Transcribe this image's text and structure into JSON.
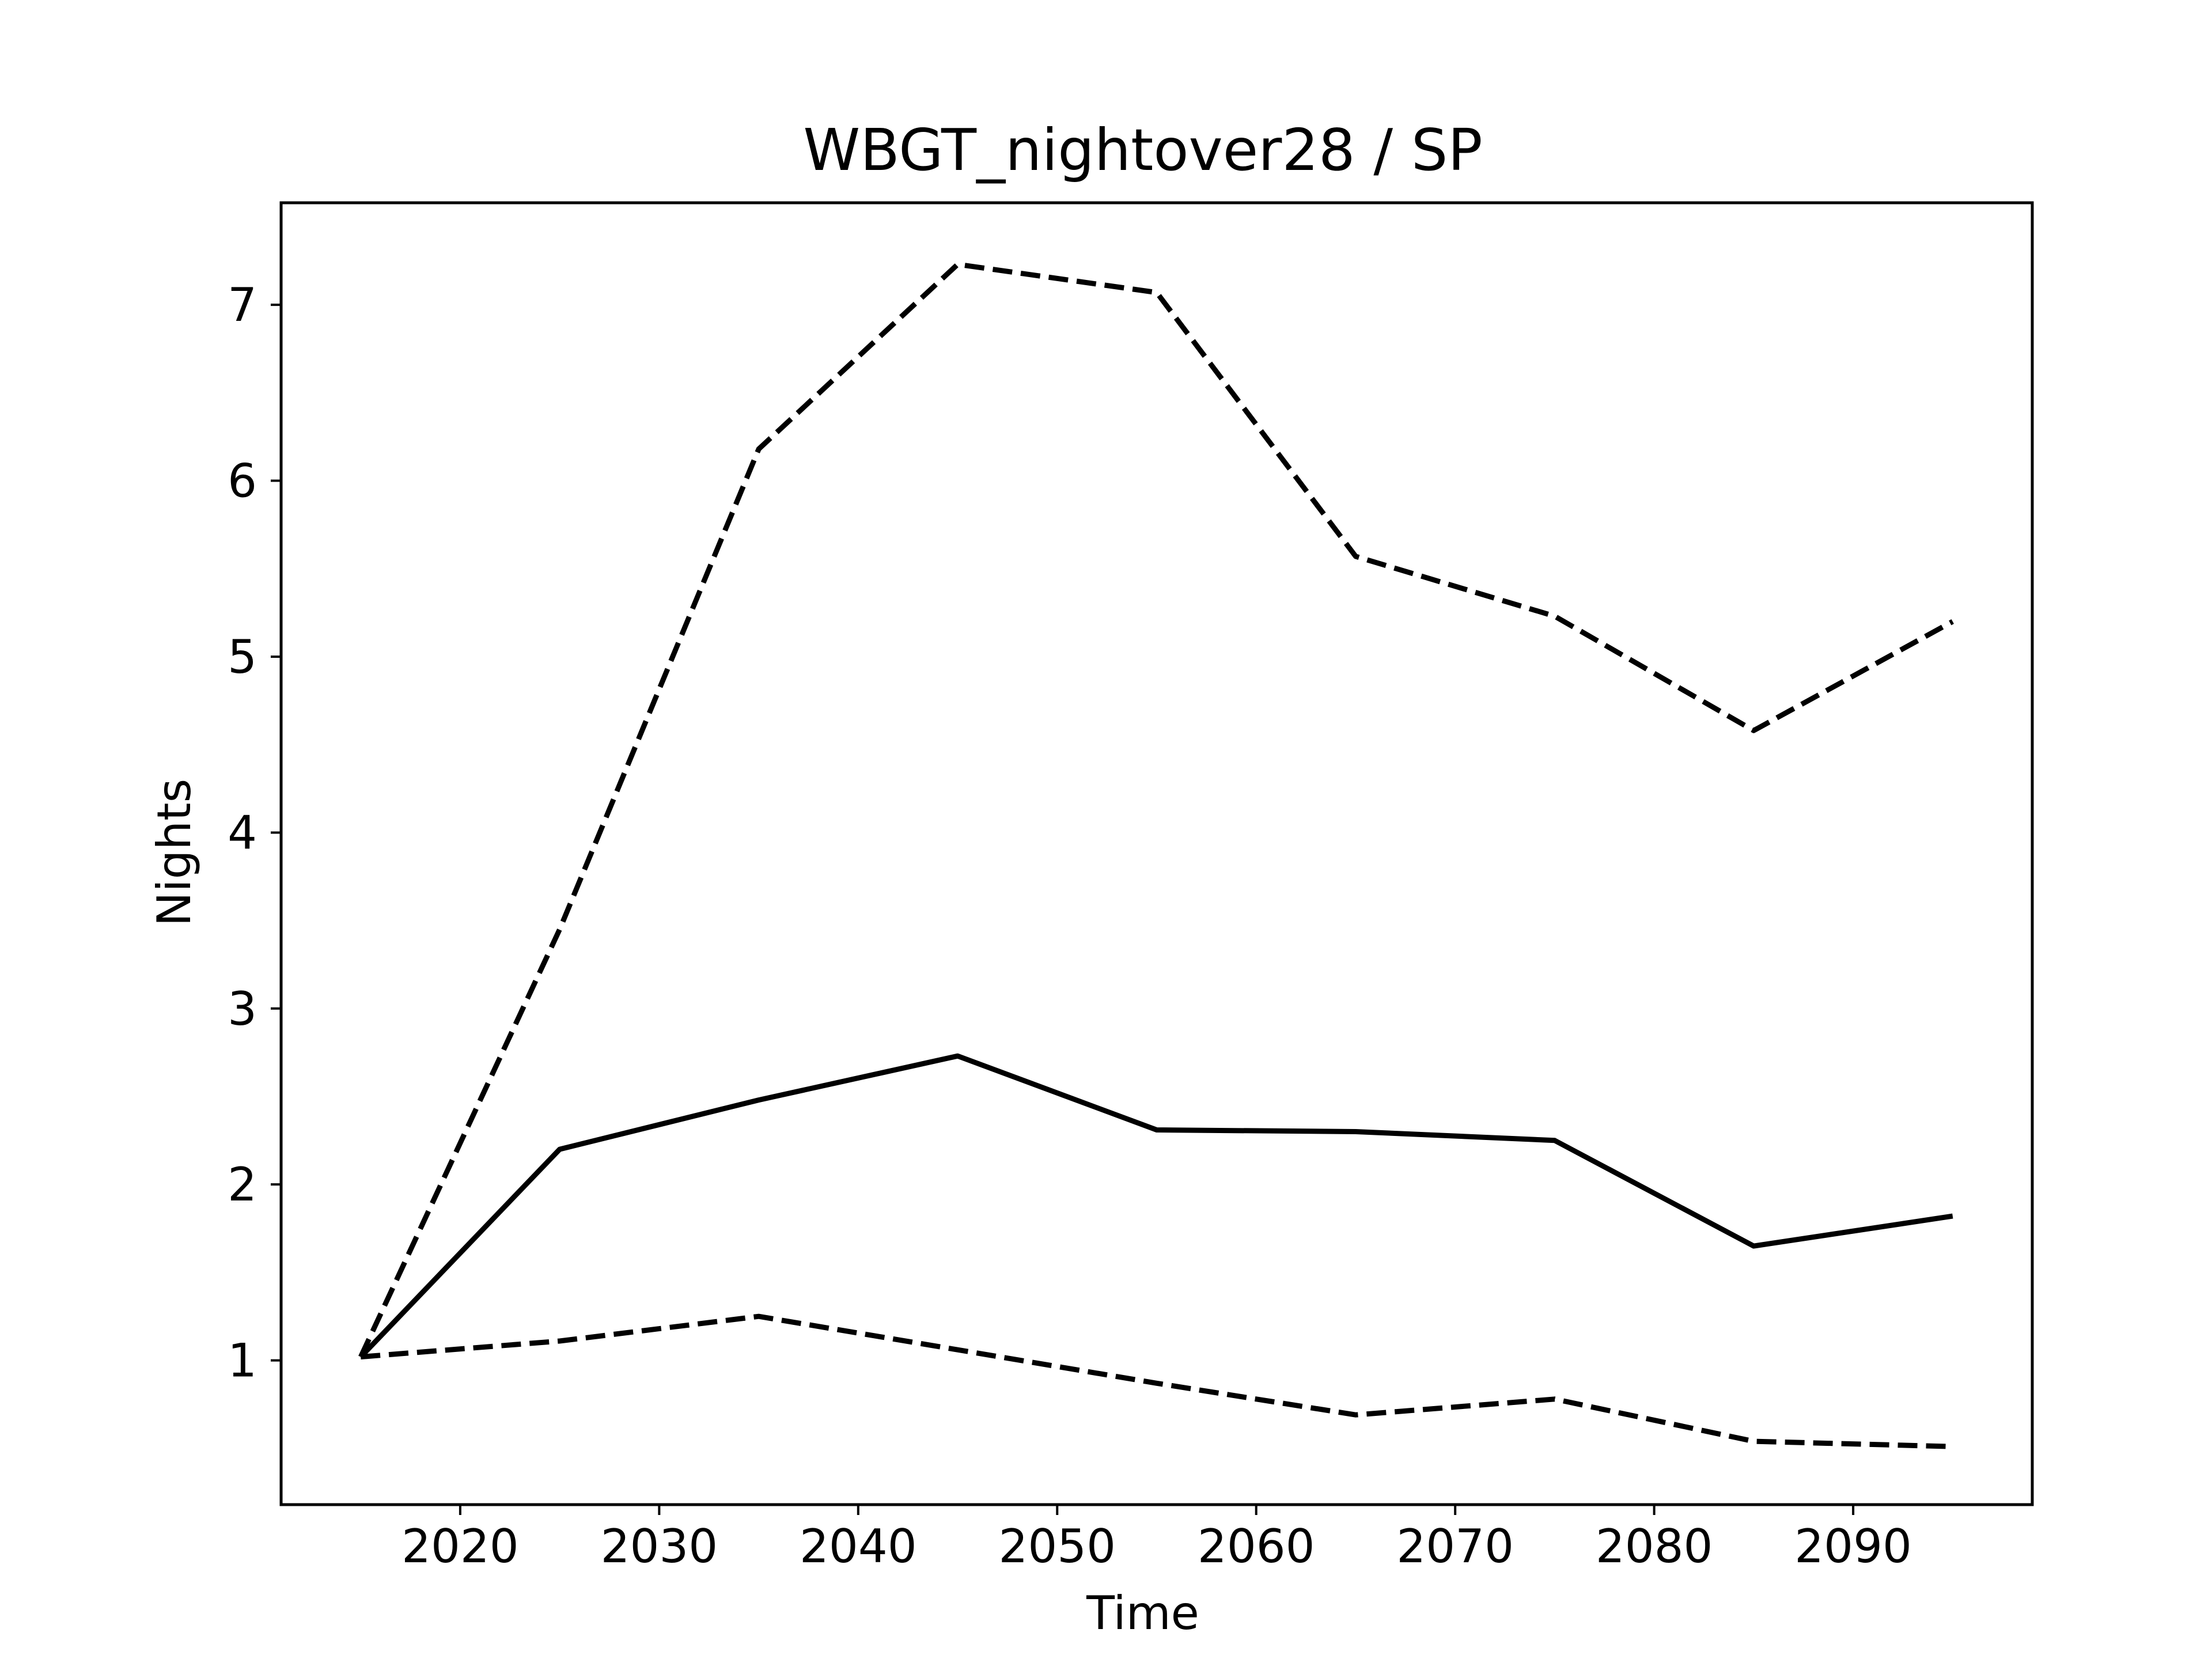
{
  "chart_data": {
    "type": "line",
    "title": "WBGT_nightover28 / SP",
    "xlabel": "Time",
    "ylabel": "Nights",
    "xlim": [
      2011,
      2099
    ],
    "ylim": [
      0.18,
      7.58
    ],
    "xticks": [
      2020,
      2030,
      2040,
      2050,
      2060,
      2070,
      2080,
      2090
    ],
    "yticks": [
      1,
      2,
      3,
      4,
      5,
      6,
      7
    ],
    "grid": false,
    "x": [
      2015,
      2025,
      2035,
      2045,
      2055,
      2065,
      2075,
      2085,
      2095
    ],
    "series": [
      {
        "style": "dashed",
        "color": "#000000",
        "values": [
          1.02,
          3.45,
          6.18,
          7.23,
          7.07,
          5.57,
          5.23,
          4.58,
          5.2
        ]
      },
      {
        "style": "solid",
        "color": "#000000",
        "values": [
          1.02,
          2.2,
          2.48,
          2.73,
          2.31,
          2.3,
          2.25,
          1.65,
          1.82
        ]
      },
      {
        "style": "dashed",
        "color": "#000000",
        "values": [
          1.02,
          1.11,
          1.25,
          1.06,
          0.87,
          0.69,
          0.78,
          0.54,
          0.51
        ]
      }
    ]
  }
}
